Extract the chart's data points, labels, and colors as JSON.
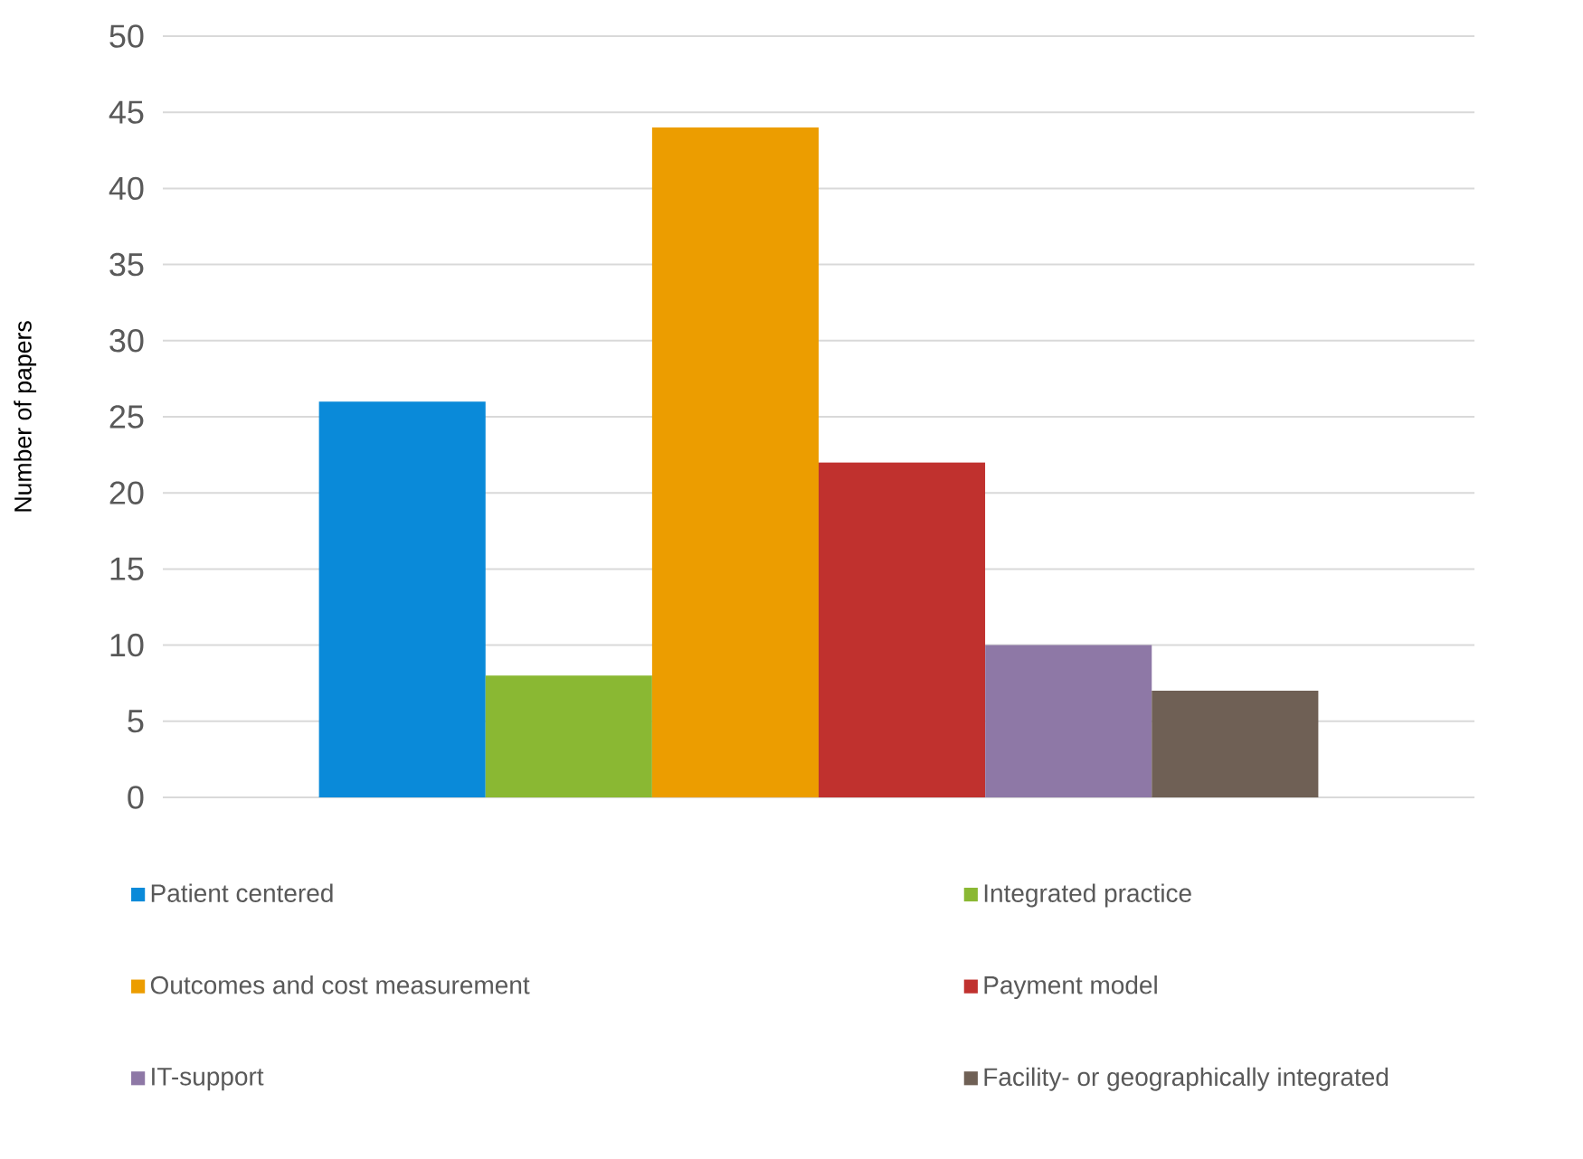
{
  "chart_data": {
    "type": "bar",
    "ylabel": "Number of papers",
    "categories": [
      null
    ],
    "series": [
      {
        "name": "Patient centered",
        "color": "#0a8ad9",
        "values": [
          26
        ]
      },
      {
        "name": "Integrated practice",
        "color": "#8ab833",
        "values": [
          8
        ]
      },
      {
        "name": "Outcomes and cost measurement",
        "color": "#ec9d00",
        "values": [
          44
        ]
      },
      {
        "name": "Payment model",
        "color": "#c0312e",
        "values": [
          22
        ]
      },
      {
        "name": "IT-support",
        "color": "#8e78a6",
        "values": [
          10
        ]
      },
      {
        "name": "Facility- or geographically integrated",
        "color": "#6f6055",
        "values": [
          7
        ]
      }
    ],
    "ylim": [
      0,
      50
    ],
    "yticks": [
      0,
      5,
      10,
      15,
      20,
      25,
      30,
      35,
      40,
      45,
      50
    ],
    "grid": "y",
    "legend": "bottom"
  }
}
